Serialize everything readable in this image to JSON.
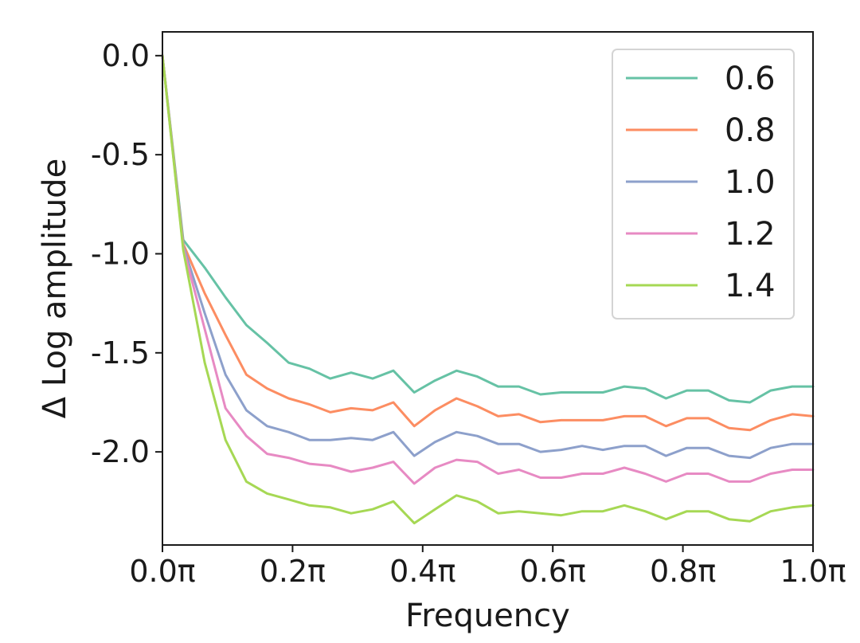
{
  "chart_data": {
    "type": "line",
    "xlabel": "Frequency",
    "ylabel": "Δ Log amplitude",
    "xlim": [
      0,
      1
    ],
    "ylim": [
      -2.47,
      0.12
    ],
    "x_ticks": [
      0,
      0.2,
      0.4,
      0.6,
      0.8,
      1.0
    ],
    "x_tick_labels": [
      "0.0π",
      "0.2π",
      "0.4π",
      "0.6π",
      "0.8π",
      "1.0π"
    ],
    "y_ticks": [
      0,
      -0.5,
      -1.0,
      -1.5,
      -2.0
    ],
    "y_tick_labels": [
      "0.0",
      "-0.5",
      "-1.0",
      "-1.5",
      "-2.0"
    ],
    "grid": false,
    "legend_position": "top-right",
    "x": [
      0,
      0.032,
      0.065,
      0.097,
      0.129,
      0.161,
      0.194,
      0.226,
      0.258,
      0.29,
      0.323,
      0.355,
      0.387,
      0.419,
      0.452,
      0.484,
      0.516,
      0.548,
      0.581,
      0.613,
      0.645,
      0.677,
      0.71,
      0.742,
      0.774,
      0.806,
      0.839,
      0.871,
      0.903,
      0.935,
      0.968,
      1.0
    ],
    "series": [
      {
        "name": "0.6",
        "color": "#66c2a5",
        "values": [
          0.0,
          -0.93,
          -1.07,
          -1.22,
          -1.36,
          -1.45,
          -1.55,
          -1.58,
          -1.63,
          -1.6,
          -1.63,
          -1.59,
          -1.7,
          -1.64,
          -1.59,
          -1.62,
          -1.67,
          -1.67,
          -1.71,
          -1.7,
          -1.7,
          -1.7,
          -1.67,
          -1.68,
          -1.73,
          -1.69,
          -1.69,
          -1.74,
          -1.75,
          -1.69,
          -1.67,
          -1.67
        ]
      },
      {
        "name": "0.8",
        "color": "#fc8d62",
        "values": [
          0.0,
          -0.95,
          -1.2,
          -1.41,
          -1.61,
          -1.68,
          -1.73,
          -1.76,
          -1.8,
          -1.78,
          -1.79,
          -1.75,
          -1.87,
          -1.79,
          -1.73,
          -1.77,
          -1.82,
          -1.81,
          -1.85,
          -1.84,
          -1.84,
          -1.84,
          -1.82,
          -1.82,
          -1.87,
          -1.83,
          -1.83,
          -1.88,
          -1.89,
          -1.84,
          -1.81,
          -1.82
        ]
      },
      {
        "name": "1.0",
        "color": "#8da0cb",
        "values": [
          0.0,
          -0.96,
          -1.3,
          -1.61,
          -1.79,
          -1.87,
          -1.9,
          -1.94,
          -1.94,
          -1.93,
          -1.94,
          -1.9,
          -2.02,
          -1.95,
          -1.9,
          -1.92,
          -1.96,
          -1.96,
          -2.0,
          -1.99,
          -1.97,
          -1.99,
          -1.97,
          -1.97,
          -2.02,
          -1.98,
          -1.98,
          -2.02,
          -2.03,
          -1.98,
          -1.96,
          -1.96
        ]
      },
      {
        "name": "1.2",
        "color": "#e78ac3",
        "values": [
          0.0,
          -0.97,
          -1.38,
          -1.78,
          -1.92,
          -2.01,
          -2.03,
          -2.06,
          -2.07,
          -2.1,
          -2.08,
          -2.05,
          -2.16,
          -2.08,
          -2.04,
          -2.05,
          -2.11,
          -2.09,
          -2.13,
          -2.13,
          -2.11,
          -2.11,
          -2.08,
          -2.11,
          -2.15,
          -2.11,
          -2.11,
          -2.15,
          -2.15,
          -2.11,
          -2.09,
          -2.09
        ]
      },
      {
        "name": "1.4",
        "color": "#a6d854",
        "values": [
          0.0,
          -0.98,
          -1.55,
          -1.94,
          -2.15,
          -2.21,
          -2.24,
          -2.27,
          -2.28,
          -2.31,
          -2.29,
          -2.25,
          -2.36,
          -2.29,
          -2.22,
          -2.25,
          -2.31,
          -2.3,
          -2.31,
          -2.32,
          -2.3,
          -2.3,
          -2.27,
          -2.3,
          -2.34,
          -2.3,
          -2.3,
          -2.34,
          -2.35,
          -2.3,
          -2.28,
          -2.27
        ]
      }
    ]
  }
}
